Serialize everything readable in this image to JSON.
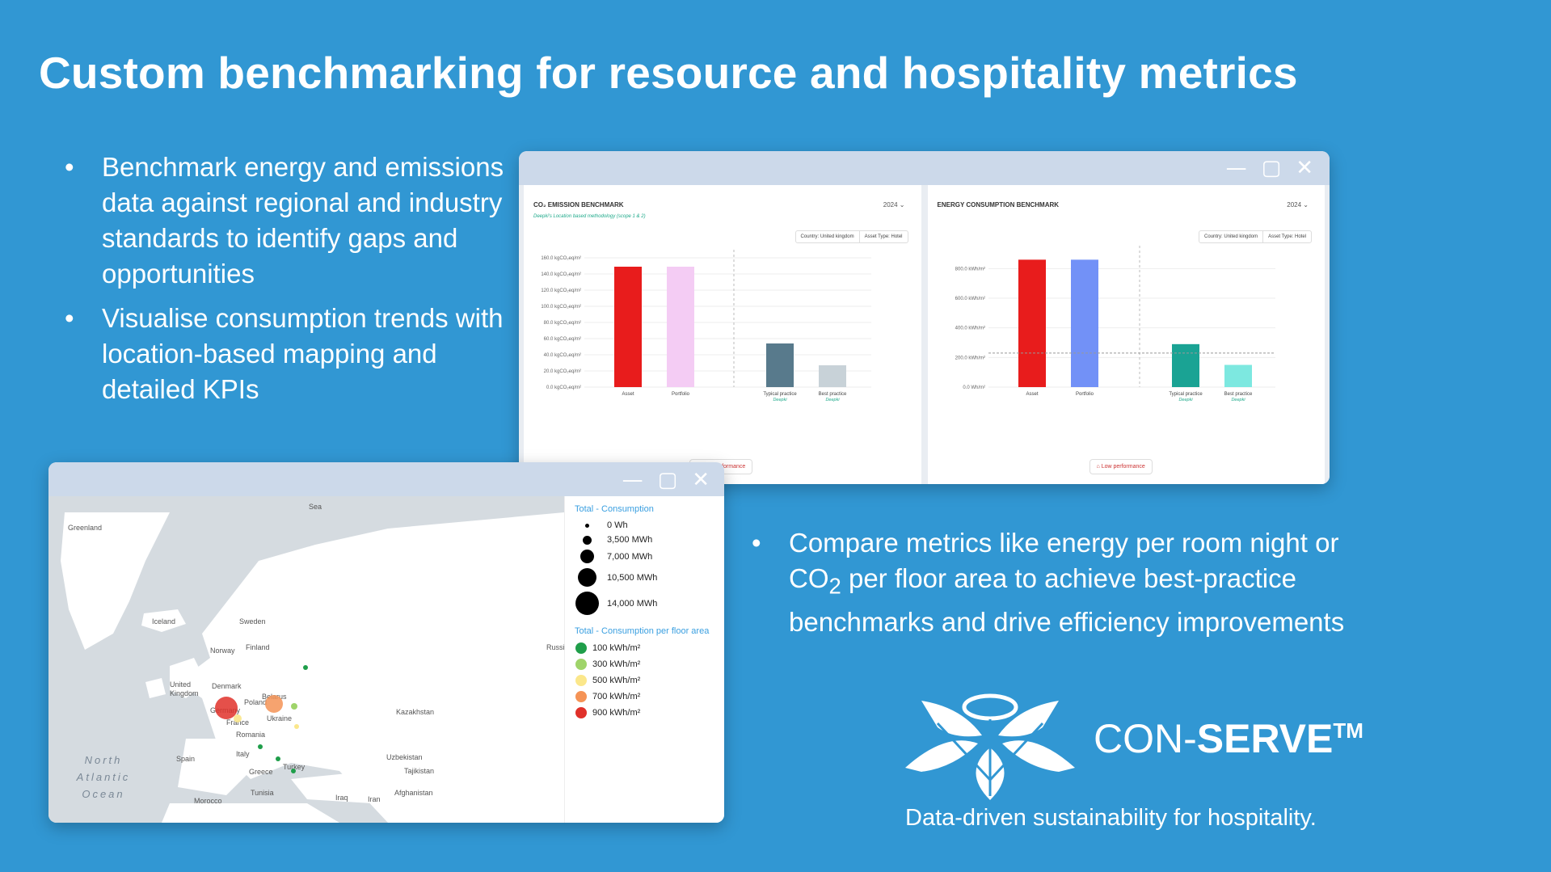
{
  "title": "Custom benchmarking for resource and hospitality metrics",
  "bullets_left": [
    "Benchmark energy and emissions data against regional and industry standards to identify gaps and opportunities",
    "Visualise consumption trends with location-based mapping and detailed KPIs"
  ],
  "bullets_right": {
    "pre": "Compare metrics like energy per room night or CO",
    "sub": "2",
    "post": " per floor area to achieve best-practice benchmarks and drive efficiency improvements"
  },
  "window_controls": {
    "minimize": "—",
    "maximize": "▢",
    "close": "✕"
  },
  "co2_panel": {
    "title": "CO₂ EMISSION BENCHMARK",
    "subtitle": "Deepki's Location based methodology (scope 1 & 2)",
    "year": "2024",
    "filter_country": "Country: United kingdom",
    "filter_asset": "Asset Type: Hotel",
    "performance_button": "Low performance"
  },
  "energy_panel": {
    "title": "ENERGY CONSUMPTION BENCHMARK",
    "year": "2024",
    "filter_country": "Country: United kingdom",
    "filter_asset": "Asset Type: Hotel",
    "performance_button": "Low performance"
  },
  "chart_data": [
    {
      "type": "bar",
      "title": "CO₂ EMISSION BENCHMARK",
      "categories": [
        "Asset",
        "Portfolio",
        "Typical practice",
        "Best practice"
      ],
      "category_sublabels": [
        "",
        "",
        "Deepki",
        "Deepki"
      ],
      "values": [
        149,
        149,
        54,
        27
      ],
      "ylim": [
        0,
        160
      ],
      "yticks": [
        0,
        20,
        40,
        60,
        80,
        100,
        120,
        140,
        160
      ],
      "ytick_labels": [
        "0.0 kgCO₂eq/m²",
        "20.0 kgCO₂eq/m²",
        "40.0 kgCO₂eq/m²",
        "60.0 kgCO₂eq/m²",
        "80.0 kgCO₂eq/m²",
        "100.0 kgCO₂eq/m²",
        "120.0 kgCO₂eq/m²",
        "140.0 kgCO₂eq/m²",
        "160.0 kgCO₂eq/m²"
      ],
      "colors": [
        "#e81c1c",
        "#f4ccf4",
        "#587a8c",
        "#c8d2d8"
      ]
    },
    {
      "type": "bar",
      "title": "ENERGY CONSUMPTION BENCHMARK",
      "categories": [
        "Asset",
        "Portfolio",
        "Typical practice",
        "Best practice"
      ],
      "category_sublabels": [
        "",
        "",
        "Deepki",
        "Deepki"
      ],
      "values": [
        860,
        860,
        290,
        150
      ],
      "ylim": [
        0,
        900
      ],
      "yticks": [
        0,
        200,
        400,
        600,
        800
      ],
      "ytick_labels": [
        "0.0 Wh/m²",
        "200.0 kWh/m²",
        "400.0 kWh/m²",
        "600.0 kWh/m²",
        "800.0 kWh/m²"
      ],
      "reference_line": 230,
      "colors": [
        "#e81c1c",
        "#7291f7",
        "#1aa394",
        "#7de8e0"
      ]
    }
  ],
  "map": {
    "labels": {
      "greenland": "Greenland",
      "iceland": "Iceland",
      "norway": "Norway",
      "sweden": "Sweden",
      "finland": "Finland",
      "uk": "United Kingdom",
      "denmark": "Denmark",
      "germany": "Germany",
      "france": "France",
      "spain": "Spain",
      "italy": "Italy",
      "poland": "Poland",
      "belarus": "Belarus",
      "ukraine": "Ukraine",
      "romania": "Romania",
      "turkey": "Turkey",
      "kazakhstan": "Kazakhstan",
      "uzbekistan": "Uzbekistan",
      "iran": "Iran",
      "iraq": "Iraq",
      "morocco": "Morocco",
      "tunisia": "Tunisia",
      "greece": "Greece",
      "sea": "Sea",
      "russia": "Russi",
      "tajikistan": "Tajikistan",
      "afghanistan": "Afghanistan"
    },
    "ocean": "North Atlantic Ocean"
  },
  "legend": {
    "size_title": "Total - Consumption",
    "size_items": [
      "0 Wh",
      "3,500 MWh",
      "7,000 MWh",
      "10,500 MWh",
      "14,000 MWh"
    ],
    "color_title": "Total - Consumption per floor area",
    "color_items": [
      {
        "label": "100 kWh/m²",
        "color": "#1f9e4a"
      },
      {
        "label": "300 kWh/m²",
        "color": "#9fd46a"
      },
      {
        "label": "500 kWh/m²",
        "color": "#fbe78b"
      },
      {
        "label": "700 kWh/m²",
        "color": "#f59356"
      },
      {
        "label": "900 kWh/m²",
        "color": "#e0312a"
      }
    ]
  },
  "logo": {
    "brand_pre": "CON-",
    "brand_bold": "SERVE",
    "tm": "TM",
    "tagline": "Data-driven sustainability for hospitality."
  }
}
